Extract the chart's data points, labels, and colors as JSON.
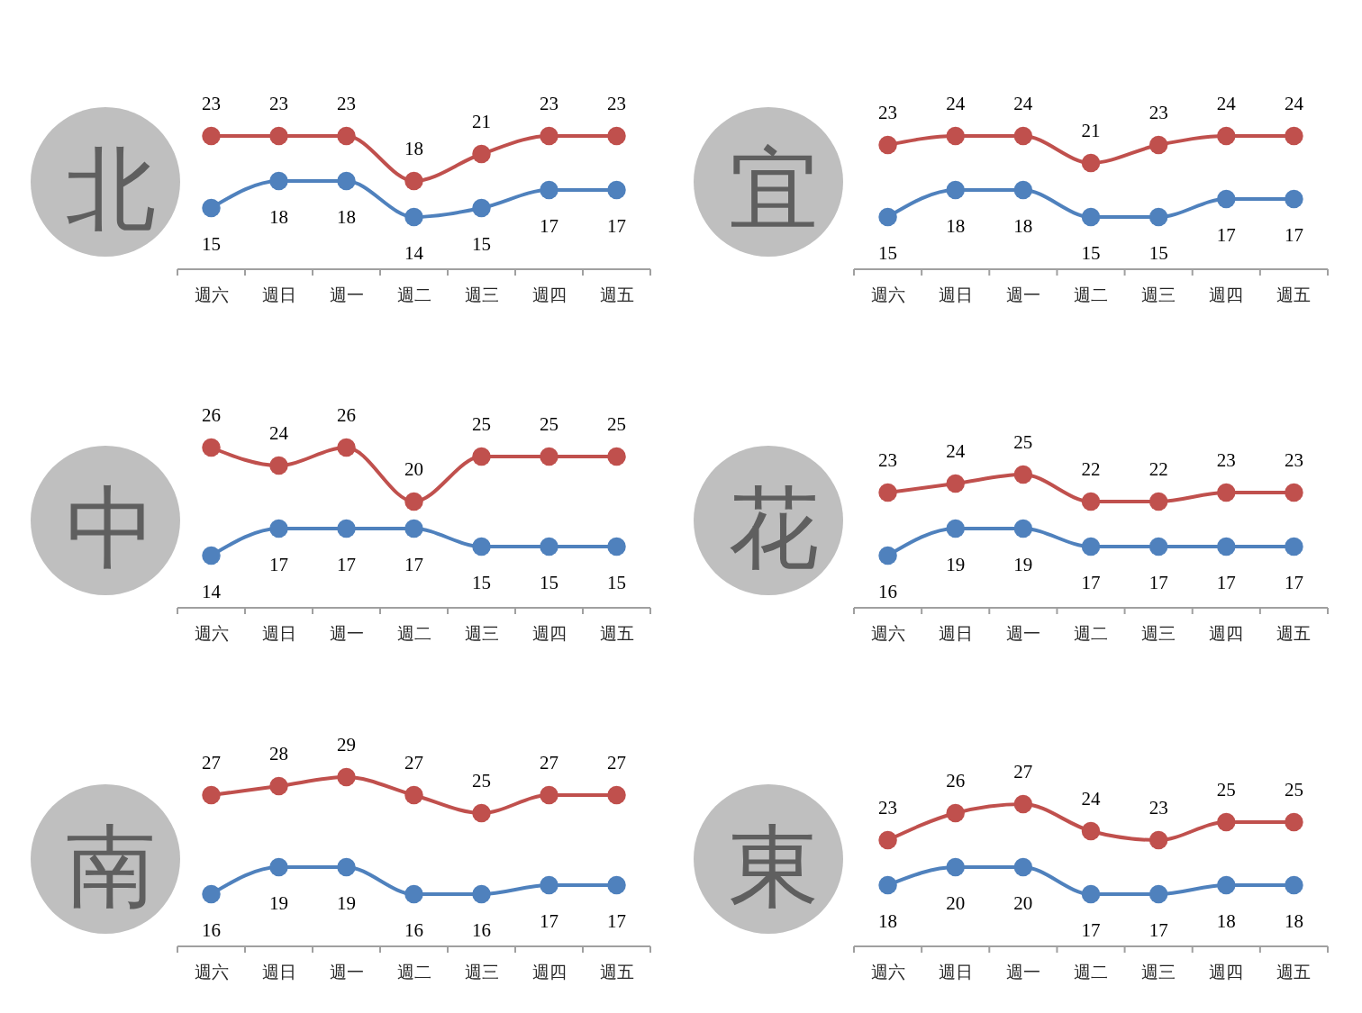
{
  "chart_data": [
    {
      "type": "line",
      "title": "北",
      "categories": [
        "週六",
        "週日",
        "週一",
        "週二",
        "週三",
        "週四",
        "週五"
      ],
      "series": [
        {
          "color": "#c0504d",
          "values": [
            23,
            23,
            23,
            18,
            21,
            23,
            23
          ]
        },
        {
          "color": "#4f81bd",
          "values": [
            15,
            18,
            18,
            14,
            15,
            17,
            17
          ]
        }
      ],
      "data_labels": true,
      "marker": "circle"
    },
    {
      "type": "line",
      "title": "宜",
      "categories": [
        "週六",
        "週日",
        "週一",
        "週二",
        "週三",
        "週四",
        "週五"
      ],
      "series": [
        {
          "color": "#c0504d",
          "values": [
            23,
            24,
            24,
            21,
            23,
            24,
            24
          ]
        },
        {
          "color": "#4f81bd",
          "values": [
            15,
            18,
            18,
            15,
            15,
            17,
            17
          ]
        }
      ],
      "data_labels": true,
      "marker": "circle"
    },
    {
      "type": "line",
      "title": "中",
      "categories": [
        "週六",
        "週日",
        "週一",
        "週二",
        "週三",
        "週四",
        "週五"
      ],
      "series": [
        {
          "color": "#c0504d",
          "values": [
            26,
            24,
            26,
            20,
            25,
            25,
            25
          ]
        },
        {
          "color": "#4f81bd",
          "values": [
            14,
            17,
            17,
            17,
            15,
            15,
            15
          ]
        }
      ],
      "data_labels": true,
      "marker": "circle"
    },
    {
      "type": "line",
      "title": "花",
      "categories": [
        "週六",
        "週日",
        "週一",
        "週二",
        "週三",
        "週四",
        "週五"
      ],
      "series": [
        {
          "color": "#c0504d",
          "values": [
            23,
            24,
            25,
            22,
            22,
            23,
            23
          ]
        },
        {
          "color": "#4f81bd",
          "values": [
            16,
            19,
            19,
            17,
            17,
            17,
            17
          ]
        }
      ],
      "data_labels": true,
      "marker": "circle"
    },
    {
      "type": "line",
      "title": "南",
      "categories": [
        "週六",
        "週日",
        "週一",
        "週二",
        "週三",
        "週四",
        "週五"
      ],
      "series": [
        {
          "color": "#c0504d",
          "values": [
            27,
            28,
            29,
            27,
            25,
            27,
            27
          ]
        },
        {
          "color": "#4f81bd",
          "values": [
            16,
            19,
            19,
            16,
            16,
            17,
            17
          ]
        }
      ],
      "data_labels": true,
      "marker": "circle"
    },
    {
      "type": "line",
      "title": "東",
      "categories": [
        "週六",
        "週日",
        "週一",
        "週二",
        "週三",
        "週四",
        "週五"
      ],
      "series": [
        {
          "color": "#c0504d",
          "values": [
            23,
            26,
            27,
            24,
            23,
            25,
            25
          ]
        },
        {
          "color": "#4f81bd",
          "values": [
            18,
            20,
            20,
            17,
            17,
            18,
            18
          ]
        }
      ],
      "data_labels": true,
      "marker": "circle"
    }
  ]
}
